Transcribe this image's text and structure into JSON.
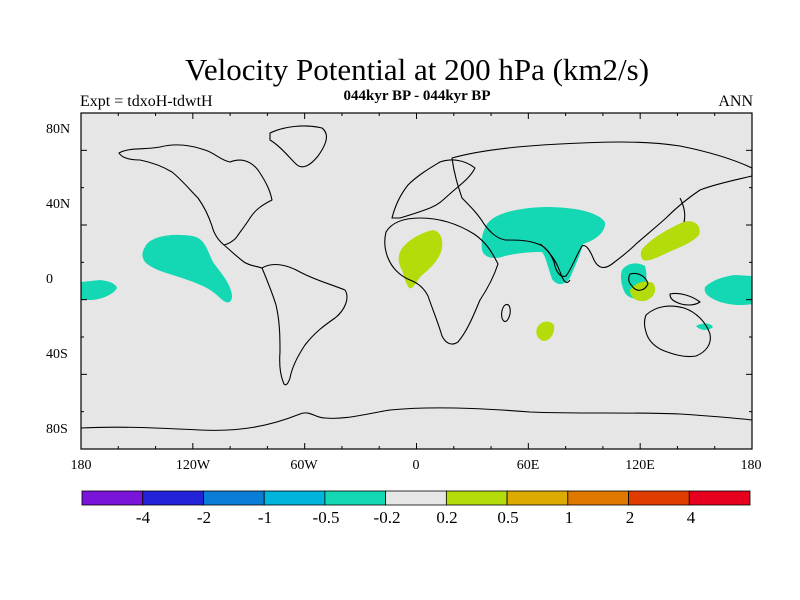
{
  "title": "Velocity Potential at 200 hPa (km2/s)",
  "subtitle": "044kyr BP - 044kyr BP",
  "left_label": "Expt = tdxoH-tdwtH",
  "right_label": "ANN",
  "y_ticks": [
    "80N",
    "40N",
    "0",
    "40S",
    "80S"
  ],
  "x_ticks": [
    "180",
    "120W",
    "60W",
    "0",
    "60E",
    "120E",
    "180"
  ],
  "colorbar": {
    "labels": [
      "-4",
      "-2",
      "-1",
      "-0.5",
      "-0.2",
      "0.2",
      "0.5",
      "1",
      "2",
      "4"
    ],
    "colors": [
      "#7a14d8",
      "#2222d8",
      "#0a7ed6",
      "#00b4dc",
      "#14d8b4",
      "#e6e6e6",
      "#b4dc0a",
      "#dcaa00",
      "#e07800",
      "#e03c00",
      "#e6001e"
    ]
  },
  "map": {
    "background": "#e6e6e6",
    "negative_fill": "#14d8b4",
    "positive_fill": "#b4dc0a"
  }
}
